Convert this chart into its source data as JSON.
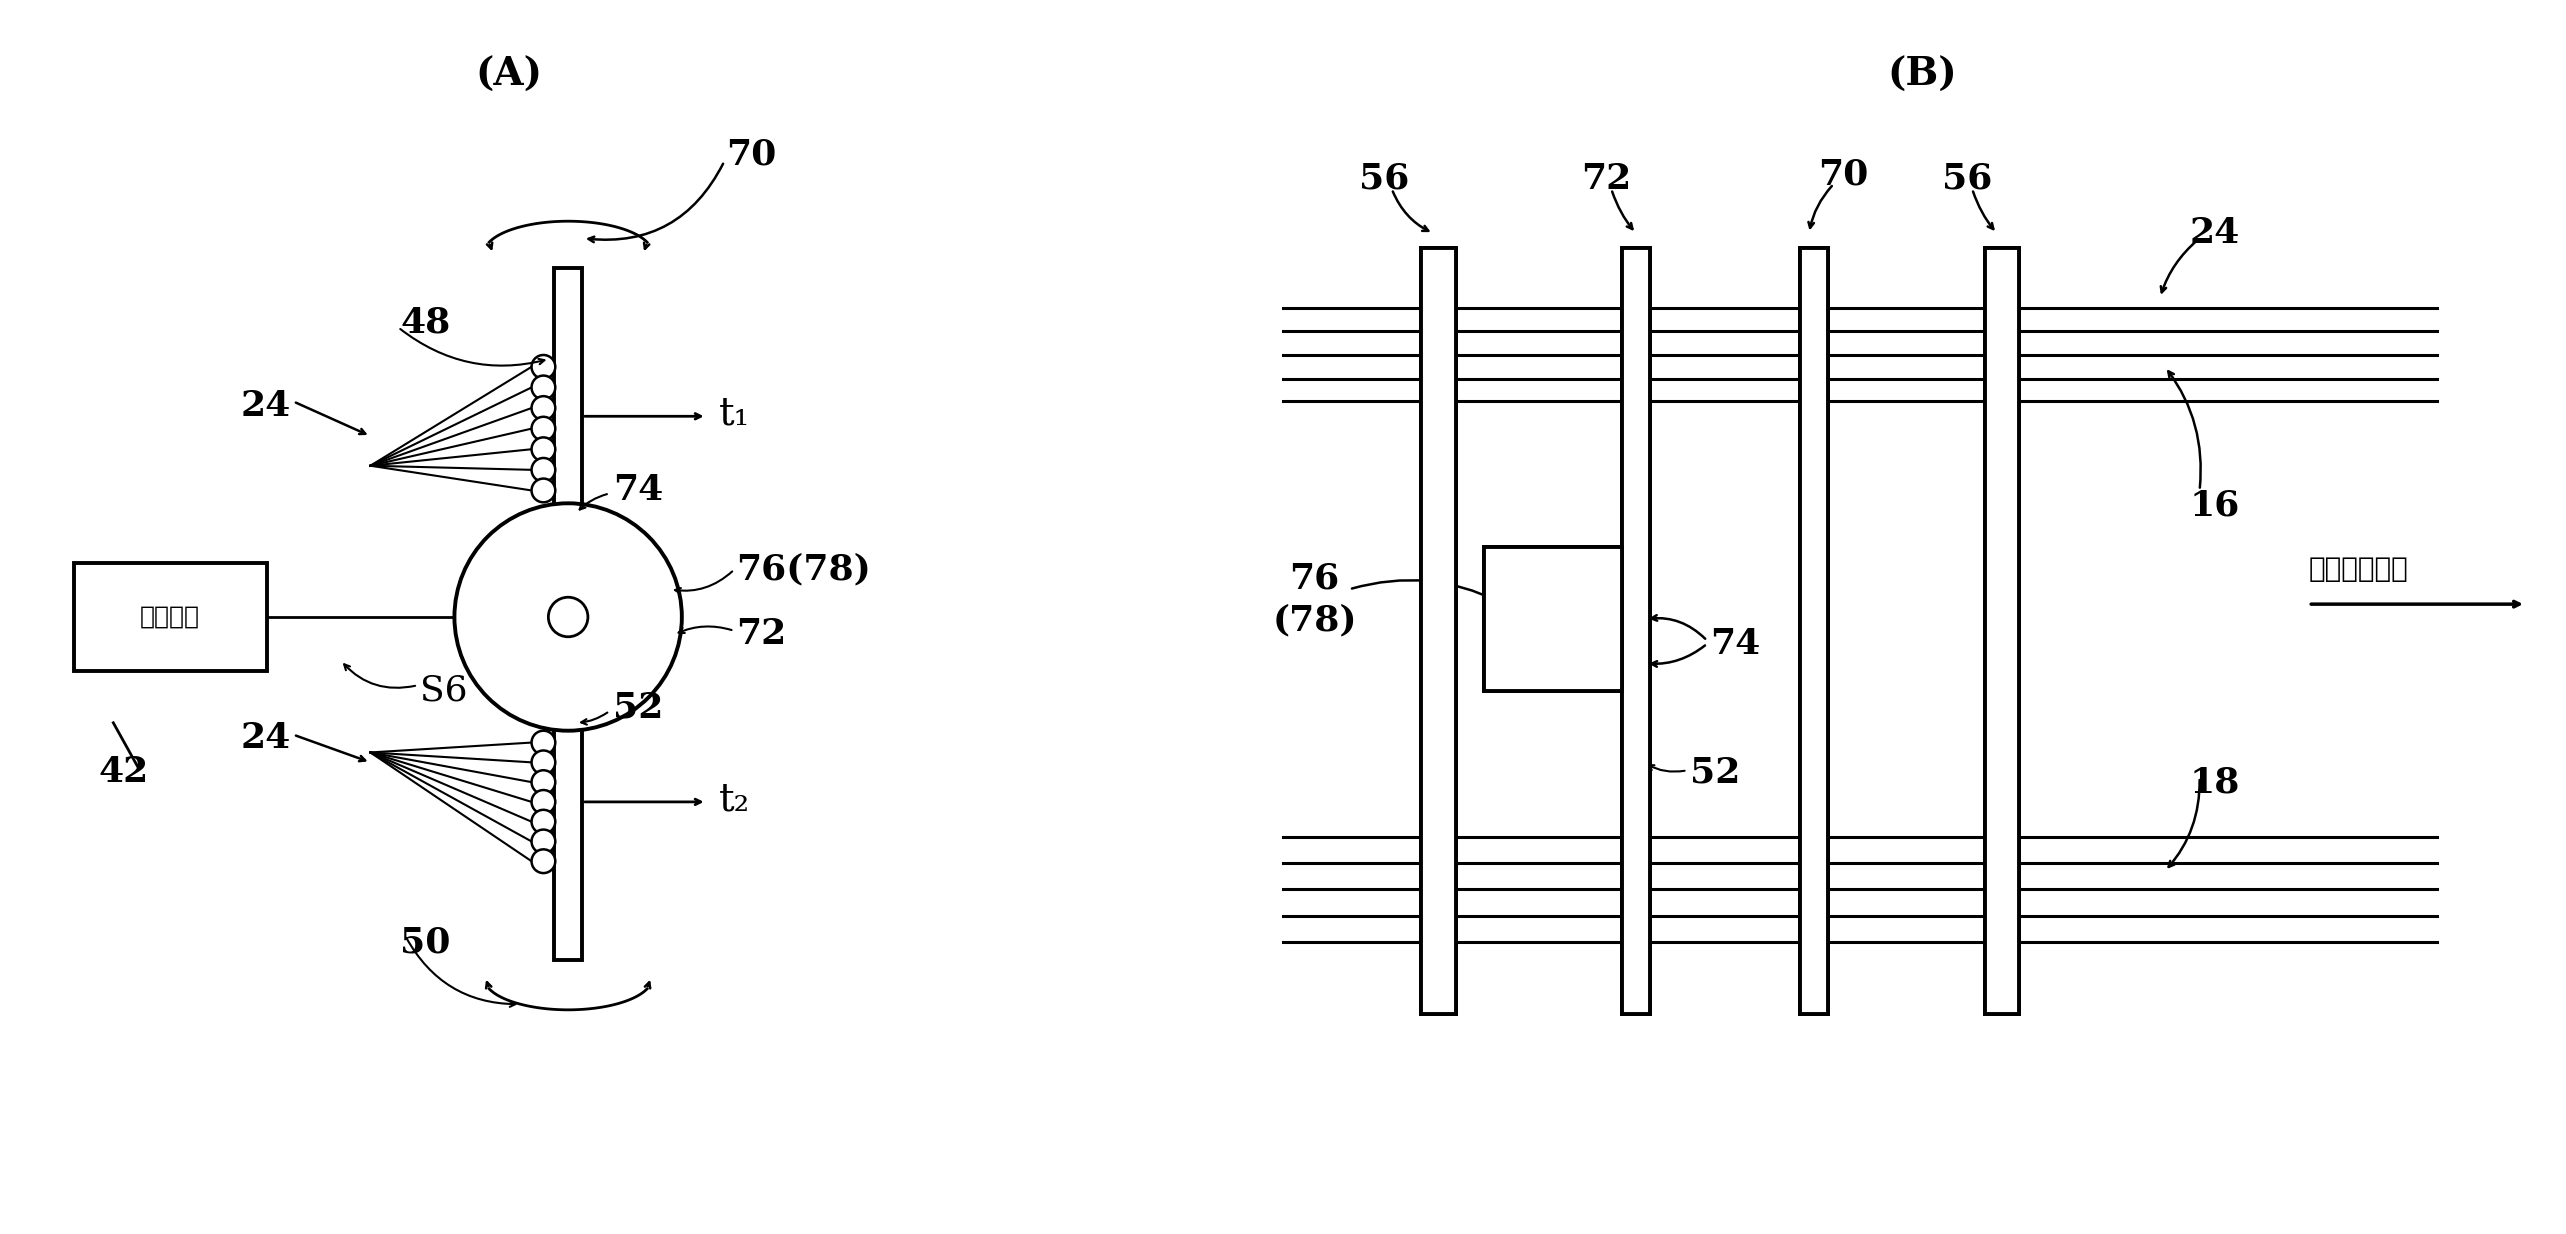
{
  "bg_color": "#ffffff",
  "line_color": "#000000",
  "label_A": "(A)",
  "label_B": "(B)",
  "fig_width": 25.66,
  "fig_height": 12.34,
  "labels": {
    "70_A": "70",
    "48": "48",
    "24_top": "24",
    "t1": "t₁",
    "74_A": "74",
    "76_78": "76(78)",
    "72_A": "72",
    "S6": "S6",
    "42": "42",
    "control": "控制装置",
    "24_bot": "24",
    "52_A": "52",
    "t2": "t₂",
    "50": "50",
    "56_left": "56",
    "72_B": "72",
    "70_B": "70",
    "56_right": "56",
    "24_B": "24",
    "76_78_B": "76\n(78)",
    "74_B": "74",
    "52_B": "52",
    "16": "16",
    "18": "18",
    "warp_dir": "经线移动方向"
  }
}
